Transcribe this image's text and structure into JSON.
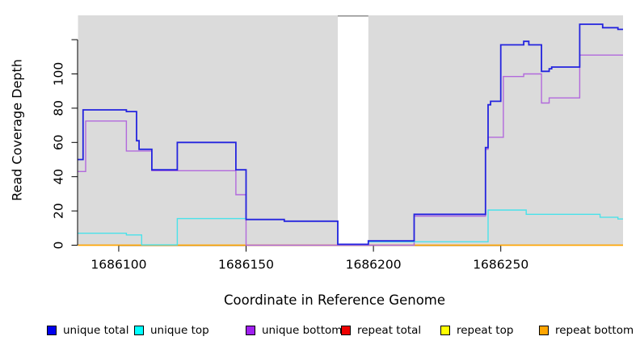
{
  "figure": {
    "background": "#FFFFFF",
    "plot_background": "#DBDBDB",
    "axis_color": "#000000",
    "gap_cap_color": "#8E8E8E"
  },
  "chart_data": {
    "type": "line",
    "step": "after",
    "title": "",
    "xlabel": "Coordinate in Reference Genome",
    "ylabel": "Read Coverage Depth",
    "xlim": [
      1686084,
      1686298
    ],
    "ylim": [
      0,
      134.2
    ],
    "grid": false,
    "legend_position": "bottom",
    "xticks": [
      1686100,
      1686150,
      1686200,
      1686250
    ],
    "xtick_labels": [
      "1686100",
      "1686150",
      "1686200",
      "1686250"
    ],
    "yticks": [
      0,
      20,
      40,
      60,
      80,
      100,
      120
    ],
    "ytick_labels": [
      "0",
      "20",
      "40",
      "60",
      "80",
      "100",
      ""
    ],
    "gap_region": {
      "from": 1686186,
      "to": 1686198,
      "color": "#FFFFFF"
    },
    "draw_order": [
      "repeat total",
      "repeat top",
      "repeat bottom",
      "unique bottom",
      "unique top",
      "unique total"
    ],
    "legend_x": [
      58,
      166,
      304,
      422,
      545,
      667
    ],
    "series": [
      {
        "name": "unique total",
        "color": "#0000EE",
        "line_color": "#2424DE",
        "line_width": 1.8,
        "points": [
          [
            1686084,
            50
          ],
          [
            1686086,
            79
          ],
          [
            1686103,
            78
          ],
          [
            1686107,
            61
          ],
          [
            1686108,
            56
          ],
          [
            1686113,
            44
          ],
          [
            1686123,
            60
          ],
          [
            1686146,
            44
          ],
          [
            1686150,
            15
          ],
          [
            1686165,
            14
          ],
          [
            1686186,
            0.5
          ],
          [
            1686198,
            2.5
          ],
          [
            1686216,
            18
          ],
          [
            1686244,
            57
          ],
          [
            1686245,
            82
          ],
          [
            1686246,
            84
          ],
          [
            1686250,
            117
          ],
          [
            1686259,
            119
          ],
          [
            1686261,
            117
          ],
          [
            1686266,
            101.5
          ],
          [
            1686269,
            103
          ],
          [
            1686270,
            104
          ],
          [
            1686281,
            129
          ],
          [
            1686290,
            127
          ],
          [
            1686296,
            126
          ]
        ]
      },
      {
        "name": "unique top",
        "color": "#00FFFF",
        "line_color": "#4AE2EA",
        "line_width": 1.4,
        "points": [
          [
            1686084,
            7
          ],
          [
            1686103,
            6
          ],
          [
            1686109,
            0.2
          ],
          [
            1686123,
            15.5
          ],
          [
            1686150,
            15
          ],
          [
            1686165,
            14
          ],
          [
            1686186,
            0.5
          ],
          [
            1686198,
            2
          ],
          [
            1686245,
            20.5
          ],
          [
            1686260,
            18
          ],
          [
            1686289,
            16.3
          ],
          [
            1686296,
            15.3
          ]
        ]
      },
      {
        "name": "unique bottom",
        "color": "#A020F0",
        "line_color": "#B269DC",
        "line_width": 1.4,
        "points": [
          [
            1686084,
            43
          ],
          [
            1686087,
            72.5
          ],
          [
            1686103,
            55
          ],
          [
            1686113,
            43.5
          ],
          [
            1686146,
            29.5
          ],
          [
            1686150,
            0
          ],
          [
            1686216,
            17
          ],
          [
            1686244,
            56
          ],
          [
            1686245,
            63
          ],
          [
            1686251,
            98.5
          ],
          [
            1686259,
            100
          ],
          [
            1686266,
            83
          ],
          [
            1686269,
            86
          ],
          [
            1686281,
            111
          ]
        ]
      },
      {
        "name": "repeat total",
        "color": "#EE0000",
        "line_color": "#E04444",
        "line_width": 1.3,
        "points": [
          [
            1686084,
            0
          ]
        ]
      },
      {
        "name": "repeat top",
        "color": "#FFFF00",
        "line_color": "#FFE800",
        "line_width": 1.3,
        "points": [
          [
            1686084,
            0
          ]
        ]
      },
      {
        "name": "repeat bottom",
        "color": "#FFA500",
        "line_color": "#FFA500",
        "line_width": 1.6,
        "points": [
          [
            1686084,
            0
          ]
        ]
      }
    ]
  }
}
